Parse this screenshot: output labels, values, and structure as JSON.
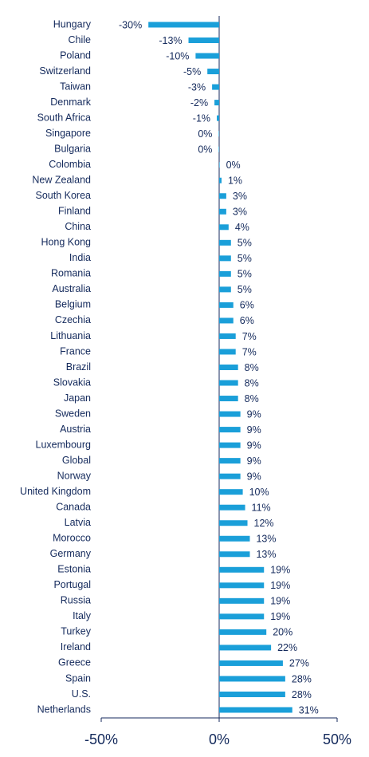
{
  "chart_data": {
    "type": "bar",
    "orientation": "horizontal",
    "categories": [
      "Hungary",
      "Chile",
      "Poland",
      "Switzerland",
      "Taiwan",
      "Denmark",
      "South Africa",
      "Singapore",
      "Bulgaria",
      "Colombia",
      "New Zealand",
      "South Korea",
      "Finland",
      "China",
      "Hong Kong",
      "India",
      "Romania",
      "Australia",
      "Belgium",
      "Czechia",
      "Lithuania",
      "France",
      "Brazil",
      "Slovakia",
      "Japan",
      "Sweden",
      "Austria",
      "Luxembourg",
      "Global",
      "Norway",
      "United Kingdom",
      "Canada",
      "Latvia",
      "Morocco",
      "Germany",
      "Estonia",
      "Portugal",
      "Russia",
      "Italy",
      "Turkey",
      "Ireland",
      "Greece",
      "Spain",
      "U.S.",
      "Netherlands"
    ],
    "values": [
      -30,
      -13,
      -10,
      -5,
      -3,
      -2,
      -1,
      -0.2,
      -0.2,
      0.2,
      1,
      3,
      3,
      4,
      5,
      5,
      5,
      5,
      6,
      6,
      7,
      7,
      8,
      8,
      8,
      9,
      9,
      9,
      9,
      9,
      10,
      11,
      12,
      13,
      13,
      19,
      19,
      19,
      19,
      20,
      22,
      27,
      28,
      28,
      31
    ],
    "value_labels": [
      "-30%",
      "-13%",
      "-10%",
      "-5%",
      "-3%",
      "-2%",
      "-1%",
      "0%",
      "0%",
      "0%",
      "1%",
      "3%",
      "3%",
      "4%",
      "5%",
      "5%",
      "5%",
      "5%",
      "6%",
      "6%",
      "7%",
      "7%",
      "8%",
      "8%",
      "8%",
      "9%",
      "9%",
      "9%",
      "9%",
      "9%",
      "10%",
      "11%",
      "12%",
      "13%",
      "13%",
      "19%",
      "19%",
      "19%",
      "19%",
      "20%",
      "22%",
      "27%",
      "28%",
      "28%",
      "31%"
    ],
    "color": "#1a9fd9",
    "xlim": [
      -50,
      50
    ],
    "xticks": [
      {
        "value": -50,
        "label": "-50%"
      },
      {
        "value": 0,
        "label": "0%"
      },
      {
        "value": 50,
        "label": "50%"
      }
    ]
  }
}
